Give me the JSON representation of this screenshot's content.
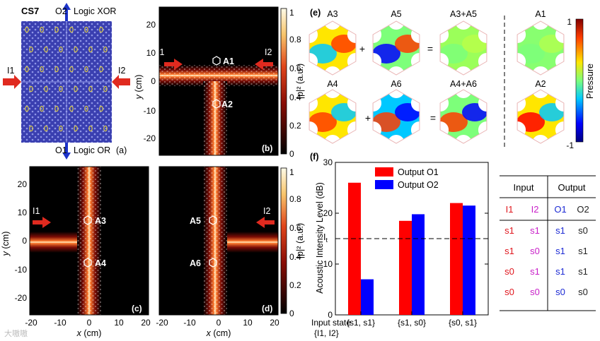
{
  "panel_a": {
    "label": "(a)",
    "sample": "CS7",
    "top_port": "O2",
    "top_logic": "Logic XOR",
    "bottom_port": "O1",
    "bottom_logic": "Logic OR",
    "left_port": "I1",
    "right_port": "I2",
    "colors": {
      "background": "#3a3fb0",
      "grain": "#d9c84a",
      "arrow_red": "#e02a1f",
      "arrow_blue": "#1c33c9"
    }
  },
  "fields": {
    "b": {
      "label": "(b)",
      "inputs": [
        "I1",
        "I2"
      ],
      "markers": [
        "A1",
        "A2"
      ]
    },
    "c": {
      "label": "(c)",
      "inputs": [
        "I1"
      ],
      "markers": [
        "A3",
        "A4"
      ]
    },
    "d": {
      "label": "(d)",
      "inputs": [
        "I2"
      ],
      "markers": [
        "A5",
        "A6"
      ]
    },
    "xlabel_var": "x",
    "xlabel_unit": " (cm)",
    "ylabel_var": "y",
    "ylabel_unit": " (cm)",
    "x_ticks": [
      "-20",
      "-10",
      "0",
      "10",
      "20"
    ],
    "y_ticks": [
      "20",
      "10",
      "0",
      "-10",
      "-20"
    ],
    "colorbar_ticks": [
      "1",
      "0.8",
      "0.6",
      "0.4",
      "0.2",
      "0"
    ],
    "colorbar_label": "|p|² (a.u.)"
  },
  "panel_e": {
    "label": "(e)",
    "row1": [
      "A3",
      "A5",
      "A3+A5",
      "A1"
    ],
    "row2": [
      "A4",
      "A6",
      "A4+A6",
      "A2"
    ],
    "plus": "+",
    "equals": "=",
    "colorbar_top": "1",
    "colorbar_bottom": "-1",
    "colorbar_label": "Pressure"
  },
  "panel_f": {
    "label": "(f)",
    "threshold_label": "I",
    "threshold_sub": "t",
    "xcaption_line1": "Input state",
    "xcaption_line2": "{I1, I2}"
  },
  "chart_data": {
    "type": "bar",
    "categories": [
      "{s1, s1}",
      "{s1, s0}",
      "{s0, s1}"
    ],
    "series": [
      {
        "name": "Output O1",
        "color": "#ff0000",
        "values": [
          26,
          18.5,
          22
        ]
      },
      {
        "name": "Output O2",
        "color": "#0000ff",
        "values": [
          7,
          19.8,
          21.5
        ]
      }
    ],
    "ylabel": "Acoustic Intensity Level (dB)",
    "ylim": [
      0,
      30
    ],
    "yticks": [
      0,
      10,
      20,
      30
    ],
    "threshold": 15,
    "legend": "top-left"
  },
  "truth_table": {
    "headers": [
      "Input",
      "Output"
    ],
    "subheaders": [
      "I1",
      "I2",
      "O1",
      "O2"
    ],
    "rows": [
      [
        "s1",
        "s1",
        "s1",
        "s0"
      ],
      [
        "s1",
        "s0",
        "s1",
        "s1"
      ],
      [
        "s0",
        "s1",
        "s1",
        "s1"
      ],
      [
        "s0",
        "s0",
        "s0",
        "s0"
      ]
    ],
    "col_colors": [
      "#e0161d",
      "#c81ec8",
      "#1c2ad4",
      "#222222"
    ]
  },
  "watermark": "大嗷嗷"
}
